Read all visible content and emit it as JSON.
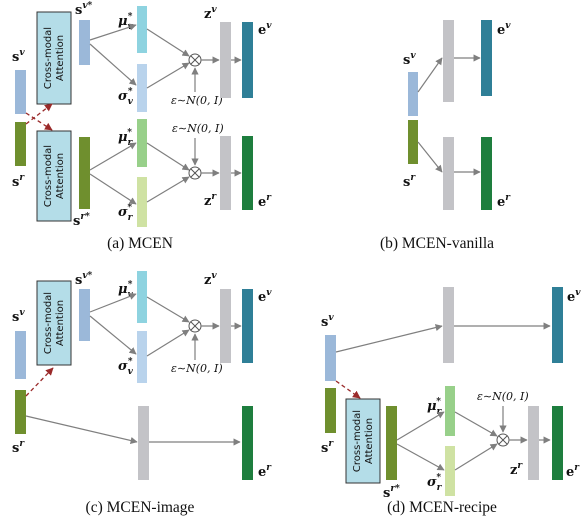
{
  "colors": {
    "image_feature": "#9bb8d9",
    "recipe_feature": "#6f8f2e",
    "attention_box": "#b4dde8",
    "mu_v": "#8ed3e0",
    "sigma_v": "#b9d3ec",
    "mu_r": "#98d08a",
    "sigma_r": "#cfe2a3",
    "latent": "#c3c3c7",
    "embedding_image": "#2f7f97",
    "embedding_recipe": "#1e7e3e",
    "arrow": "#7f7f7f",
    "cross_arrow": "#9a2a2a"
  },
  "labels": {
    "s_v": "s",
    "s_v_sup": "v",
    "s_r": "s",
    "s_r_sup": "r",
    "s_v_star_sup": "v*",
    "s_r_star_sup": "r*",
    "mu": "μ",
    "sigma": "σ",
    "star": "*",
    "v": "v",
    "r": "r",
    "z": "z",
    "e": "e",
    "epsilon": "ε∼N(0, I)",
    "otimes": "⊗",
    "attention_line1": "Cross-modal",
    "attention_line2": "Attention"
  },
  "captions": {
    "a": "(a) MCEN",
    "b": "(b) MCEN-vanilla",
    "c": "(c) MCEN-image",
    "d": "(d) MCEN-recipe"
  }
}
